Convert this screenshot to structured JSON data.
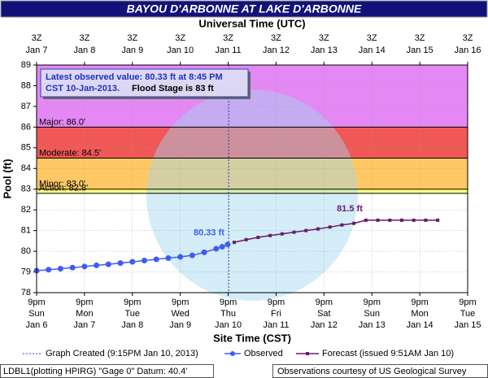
{
  "chart_data": {
    "type": "hydrograph",
    "title": "BAYOU D'ARBONNE AT LAKE D'ARBONNE",
    "top_axis_label": "Universal Time (UTC)",
    "xlabel": "Site Time (CST)",
    "ylabel": "Pool (ft)",
    "xlim": [
      "01-06T21:00",
      "01-15T21:00"
    ],
    "x2lim": [
      "01-07T03:00",
      "01-16T03:00"
    ],
    "ylim": [
      78,
      89
    ],
    "yticks": [
      78,
      79,
      80,
      81,
      82,
      83,
      84,
      85,
      86,
      87,
      88,
      89
    ],
    "grid": true,
    "xticks": [
      {
        "value": "01-06T21:00",
        "label": [
          "9pm",
          "Sun",
          "Jan 6"
        ]
      },
      {
        "value": "01-07T21:00",
        "label": [
          "9pm",
          "Mon",
          "Jan 7"
        ]
      },
      {
        "value": "01-08T21:00",
        "label": [
          "9pm",
          "Tue",
          "Jan 8"
        ]
      },
      {
        "value": "01-09T21:00",
        "label": [
          "9pm",
          "Wed",
          "Jan 9"
        ]
      },
      {
        "value": "01-10T21:00",
        "label": [
          "9pm",
          "Thu",
          "Jan 10"
        ]
      },
      {
        "value": "01-11T21:00",
        "label": [
          "9pm",
          "Fri",
          "Jan 11"
        ]
      },
      {
        "value": "01-12T21:00",
        "label": [
          "9pm",
          "Sat",
          "Jan 12"
        ]
      },
      {
        "value": "01-13T21:00",
        "label": [
          "9pm",
          "Sun",
          "Jan 13"
        ]
      },
      {
        "value": "01-14T21:00",
        "label": [
          "9pm",
          "Mon",
          "Jan 14"
        ]
      },
      {
        "value": "01-15T21:00",
        "label": [
          "9pm",
          "Tue",
          "Jan 15"
        ]
      }
    ],
    "x2ticks": [
      {
        "value": "01-07T03:00",
        "label": [
          "3Z",
          "Jan 7"
        ]
      },
      {
        "value": "01-08T03:00",
        "label": [
          "3Z",
          "Jan 8"
        ]
      },
      {
        "value": "01-09T03:00",
        "label": [
          "3Z",
          "Jan 9"
        ]
      },
      {
        "value": "01-10T03:00",
        "label": [
          "3Z",
          "Jan 10"
        ]
      },
      {
        "value": "01-11T03:00",
        "label": [
          "3Z",
          "Jan 11"
        ]
      },
      {
        "value": "01-12T03:00",
        "label": [
          "3Z",
          "Jan 12"
        ]
      },
      {
        "value": "01-13T03:00",
        "label": [
          "3Z",
          "Jan 13"
        ]
      },
      {
        "value": "01-14T03:00",
        "label": [
          "3Z",
          "Jan 14"
        ]
      },
      {
        "value": "01-15T03:00",
        "label": [
          "3Z",
          "Jan 15"
        ]
      },
      {
        "value": "01-16T03:00",
        "label": [
          "3Z",
          "Jan 16"
        ]
      }
    ],
    "flood_stages": [
      {
        "value": 82.8,
        "label": "Action: 82.8'",
        "color": "#ffff80"
      },
      {
        "value": 83,
        "label": "Minor: 83.0'",
        "color": "#ffc864"
      },
      {
        "value": 84.5,
        "label": "Moderate: 84.5'",
        "color": "#f05858"
      },
      {
        "value": 86,
        "label": "Major: 86.0'",
        "color": "#e488f4"
      }
    ],
    "graph_created": "01-10T21:15",
    "legend_graph_created": "Graph Created (9:15PM Jan 10, 2013)",
    "info_box": [
      "Latest observed value: 80.33 ft at 8:45 PM",
      "CST 10-Jan-2013.",
      "Flood Stage is 83 ft"
    ],
    "series": [
      {
        "name": "Observed",
        "color": "#3e5cf5",
        "x": [
          "01-06T21:00",
          "01-07T03:00",
          "01-07T09:00",
          "01-07T15:00",
          "01-07T21:00",
          "01-08T03:00",
          "01-08T09:00",
          "01-08T15:00",
          "01-08T21:00",
          "01-09T03:00",
          "01-09T09:00",
          "01-09T15:00",
          "01-09T21:00",
          "01-10T03:00",
          "01-10T09:00",
          "01-10T15:00",
          "01-10T18:00",
          "01-10T20:45"
        ],
        "values": [
          79.06,
          79.11,
          79.16,
          79.21,
          79.26,
          79.32,
          79.37,
          79.43,
          79.49,
          79.55,
          79.61,
          79.67,
          79.73,
          79.8,
          79.95,
          80.12,
          80.22,
          80.33
        ],
        "value_labels": [
          null,
          null,
          null,
          null,
          null,
          null,
          null,
          null,
          null,
          null,
          null,
          null,
          null,
          null,
          null,
          null,
          null,
          "80.33 ft"
        ]
      },
      {
        "name": "Forecast (issued 9:51AM Jan 10)",
        "color": "#6a1b6a",
        "x": [
          "01-11T00:00",
          "01-11T06:00",
          "01-11T12:00",
          "01-11T18:00",
          "01-12T00:00",
          "01-12T06:00",
          "01-12T12:00",
          "01-12T18:00",
          "01-13T00:00",
          "01-13T06:00",
          "01-13T12:00",
          "01-13T18:00",
          "01-14T00:00",
          "01-14T06:00",
          "01-14T12:00",
          "01-14T18:00",
          "01-15T00:00",
          "01-15T06:00"
        ],
        "values": [
          80.43,
          80.56,
          80.67,
          80.76,
          80.84,
          80.92,
          81.0,
          81.08,
          81.17,
          81.27,
          81.35,
          81.5,
          81.5,
          81.5,
          81.5,
          81.5,
          81.5,
          81.5
        ],
        "value_labels": [
          null,
          null,
          null,
          null,
          null,
          null,
          null,
          null,
          null,
          null,
          null,
          "81.5 ft",
          null,
          null,
          null,
          null,
          null,
          null
        ]
      }
    ],
    "footer_left": "LDBL1(plotting HPIRG) \"Gage 0\" Datum: 40.4'",
    "footer_right": "Observations courtesy of US Geological Survey"
  }
}
